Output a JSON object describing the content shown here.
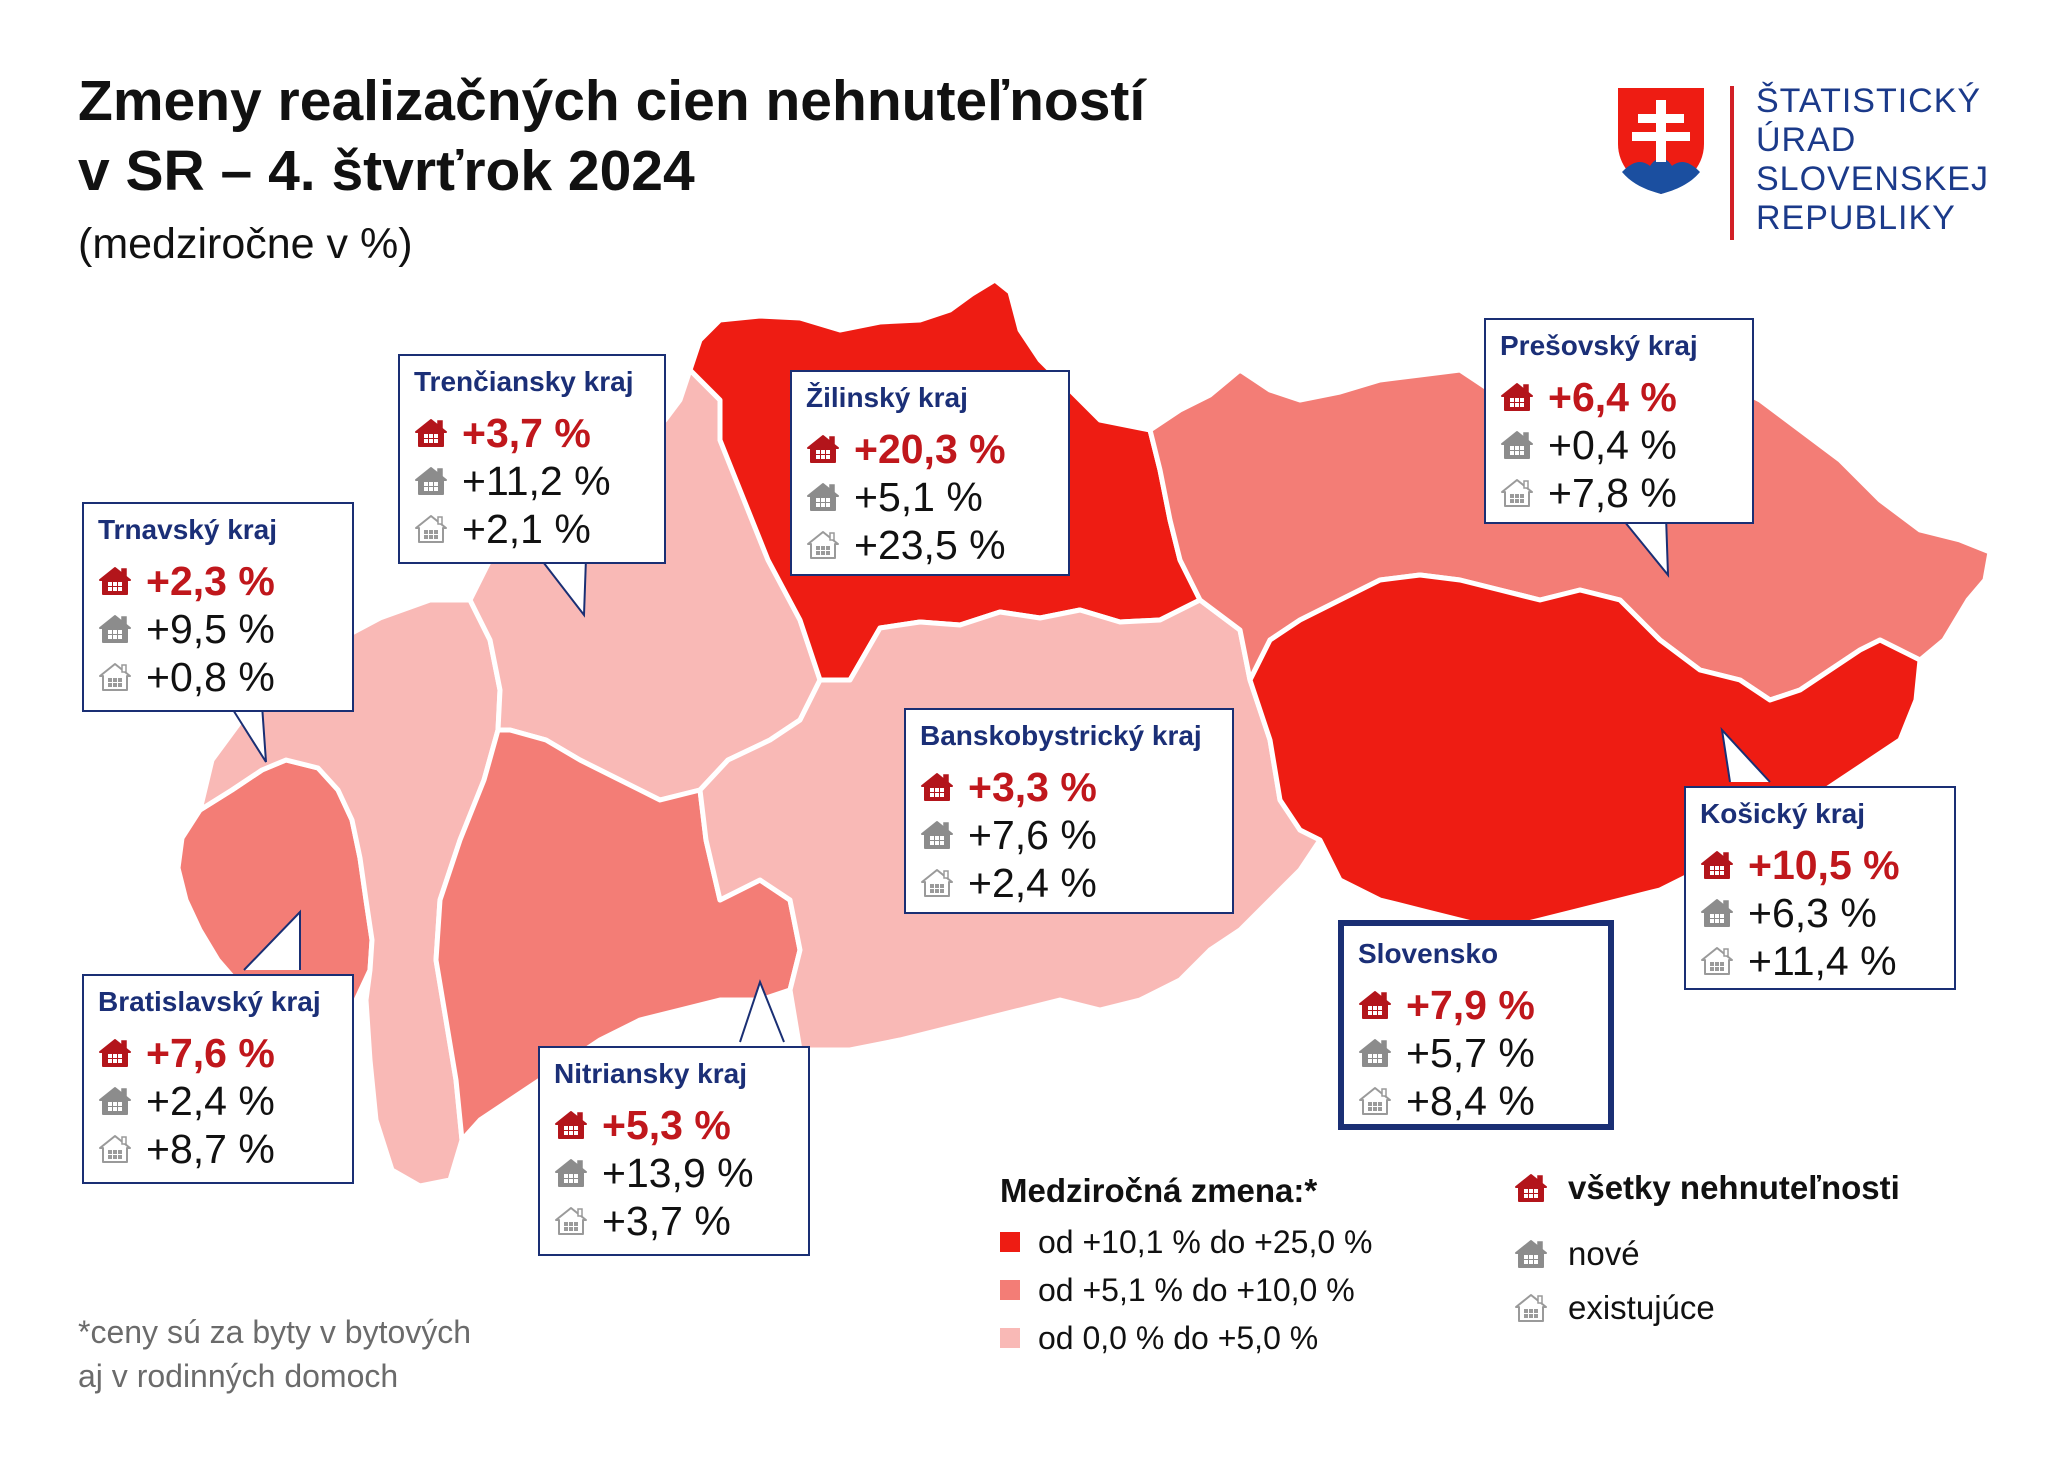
{
  "title": {
    "line1": "Zmeny realizačných cien nehnuteľností",
    "line2": "v SR – 4. štvrťrok 2024"
  },
  "subtitle": "(medziročne v %)",
  "logo": {
    "lines": [
      "ŠTATISTICKÝ",
      "ÚRAD",
      "SLOVENSKEJ",
      "REPUBLIKY"
    ]
  },
  "colors": {
    "high": "#ee1c13",
    "mid": "#f37d76",
    "low": "#f9b9b6",
    "brand": "#1b2f77",
    "accent": "#c0171c"
  },
  "regions": [
    {
      "id": "trencin",
      "name": "Trenčiansky kraj",
      "all": "+3,7 %",
      "new": "+11,2 %",
      "existing": "+2,1 %",
      "category": "low"
    },
    {
      "id": "zilina",
      "name": "Žilinský kraj",
      "all": "+20,3 %",
      "new": "+5,1 %",
      "existing": "+23,5 %",
      "category": "high"
    },
    {
      "id": "presov",
      "name": "Prešovský kraj",
      "all": "+6,4 %",
      "new": "+0,4 %",
      "existing": "+7,8 %",
      "category": "mid"
    },
    {
      "id": "trnava",
      "name": "Trnavský kraj",
      "all": "+2,3 %",
      "new": "+9,5 %",
      "existing": "+0,8 %",
      "category": "low"
    },
    {
      "id": "bbystrica",
      "name": "Banskobystrický kraj",
      "all": "+3,3 %",
      "new": "+7,6 %",
      "existing": "+2,4 %",
      "category": "low"
    },
    {
      "id": "kosice",
      "name": "Košický kraj",
      "all": "+10,5 %",
      "new": "+6,3 %",
      "existing": "+11,4 %",
      "category": "high"
    },
    {
      "id": "bratislava",
      "name": "Bratislavský kraj",
      "all": "+7,6 %",
      "new": "+2,4 %",
      "existing": "+8,7 %",
      "category": "mid"
    },
    {
      "id": "nitra",
      "name": "Nitriansky kraj",
      "all": "+5,3 %",
      "new": "+13,9 %",
      "existing": "+3,7 %",
      "category": "mid"
    }
  ],
  "slovakia": {
    "name": "Slovensko",
    "all": "+7,9 %",
    "new": "+5,7 %",
    "existing": "+8,4 %"
  },
  "legend": {
    "title": "Medziročná zmena:*",
    "items": [
      {
        "label": "od +10,1 % do +25,0 %",
        "color": "#ee1c13"
      },
      {
        "label": "od +5,1 % do +10,0 %",
        "color": "#f37d76"
      },
      {
        "label": "od 0,0 % do +5,0 %",
        "color": "#f9b9b6"
      }
    ],
    "icons": [
      {
        "label": "všetky nehnuteľnosti",
        "icon": "house-all-icon"
      },
      {
        "label": "nové",
        "icon": "house-new-icon"
      },
      {
        "label": "existujúce",
        "icon": "house-existing-icon"
      }
    ]
  },
  "note": {
    "line1": "*ceny sú za byty v bytových",
    "line2": "aj v rodinných domoch"
  }
}
